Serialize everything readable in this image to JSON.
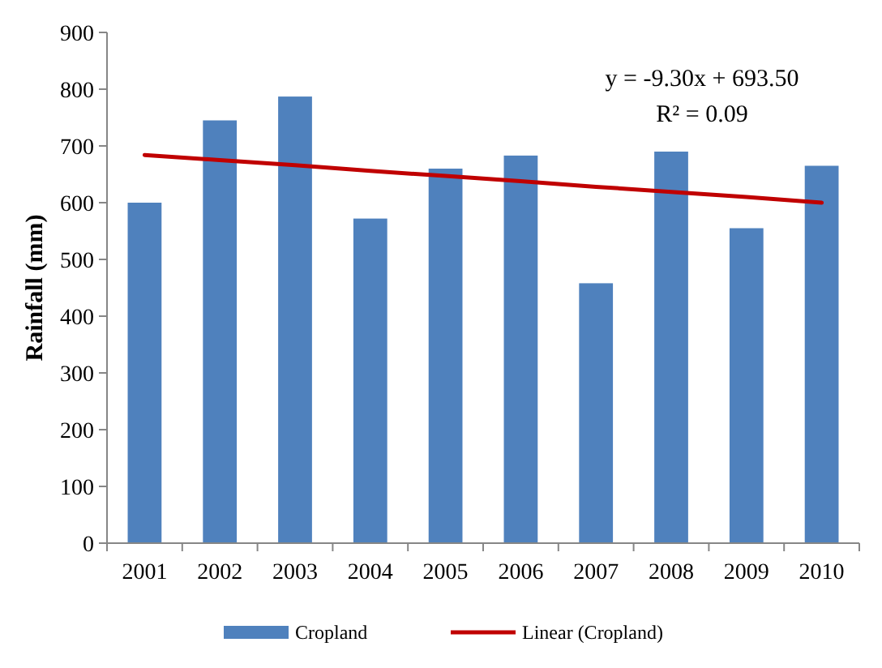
{
  "chart_data": {
    "type": "bar",
    "ylabel": "Rainfall (mm)",
    "categories": [
      "2001",
      "2002",
      "2003",
      "2004",
      "2005",
      "2006",
      "2007",
      "2008",
      "2009",
      "2010"
    ],
    "series": [
      {
        "name": "Cropland",
        "color": "#4f81bd",
        "values": [
          600,
          745,
          787,
          572,
          660,
          683,
          458,
          690,
          555,
          665
        ]
      },
      {
        "name": "Linear (Cropland)",
        "type": "line",
        "color": "#c00000",
        "values": [
          684,
          675,
          666,
          656,
          647,
          638,
          628,
          619,
          610,
          600
        ]
      }
    ],
    "ylim": [
      0,
      900
    ],
    "yticks": [
      0,
      100,
      200,
      300,
      400,
      500,
      600,
      700,
      800,
      900
    ],
    "grid": false,
    "legend": "bottom",
    "annotations": [
      "y = -9.30x + 693.50",
      "R² = 0.09"
    ]
  }
}
